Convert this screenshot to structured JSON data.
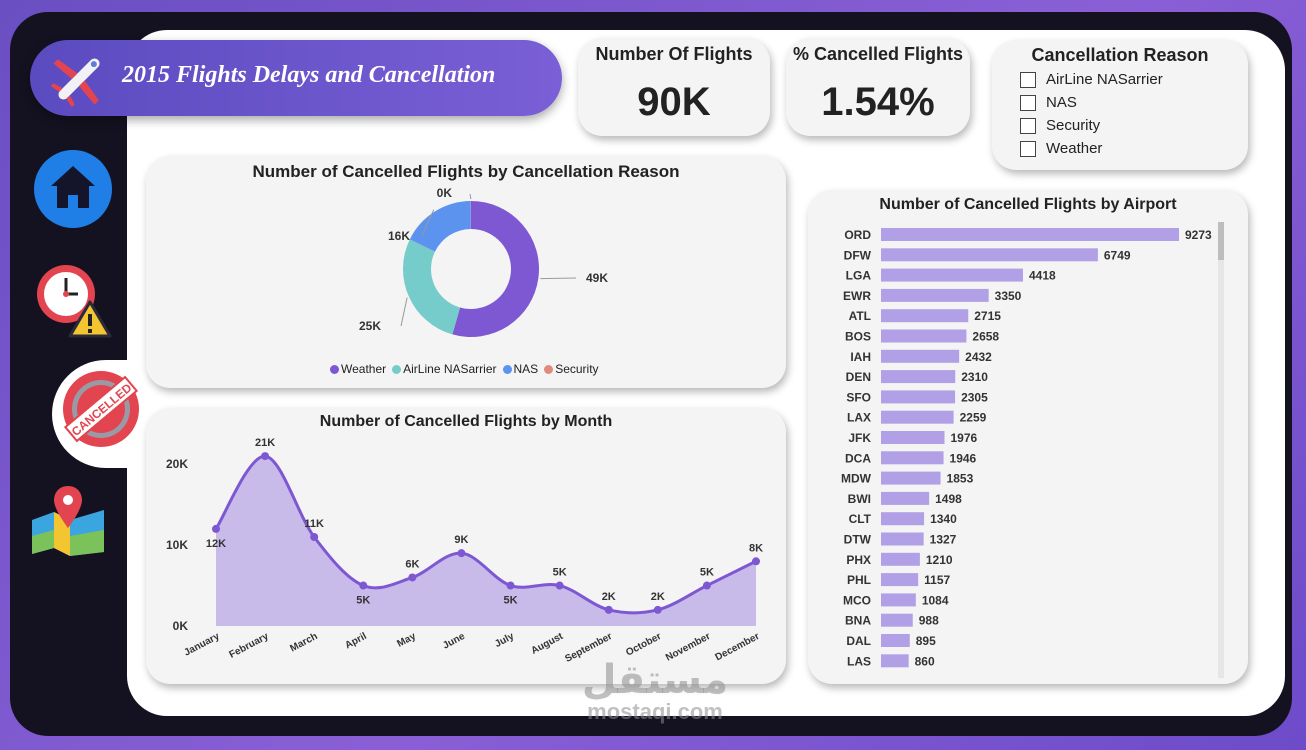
{
  "header": {
    "title": "2015 Flights Delays and Cancellation"
  },
  "nav": {
    "items": [
      {
        "icon": "home-icon"
      },
      {
        "icon": "delay-clock-icon"
      },
      {
        "icon": "cancelled-stamp-icon",
        "active": true
      },
      {
        "icon": "map-pin-icon"
      }
    ]
  },
  "kpis": {
    "flights": {
      "label": "Number Of Flights",
      "value": "90K"
    },
    "cancelled_pct": {
      "label": "% Cancelled Flights",
      "value": "1.54%"
    }
  },
  "slicer": {
    "title": "Cancellation Reason",
    "options": [
      "AirLine NASarrier",
      "NAS",
      "Security",
      "Weather"
    ]
  },
  "colors": {
    "purple": "#7e57d2",
    "teal": "#76ccca",
    "blue": "#5b93ef",
    "security": "#e08a7c",
    "bar": "#b1a0e6",
    "area": "#c8bbea"
  },
  "watermark": {
    "arabic": "مستقل",
    "latin": "mostaqi.com"
  },
  "chart_data": [
    {
      "id": "reason_donut",
      "type": "pie",
      "title": "Number of Cancelled Flights by  Cancellation Reason",
      "slices": [
        {
          "name": "Weather",
          "value": 49,
          "label": "49K",
          "color": "#7e57d2"
        },
        {
          "name": "AirLine NASarrier",
          "value": 25,
          "label": "25K",
          "color": "#76ccca"
        },
        {
          "name": "NAS",
          "value": 16,
          "label": "16K",
          "color": "#5b93ef"
        },
        {
          "name": "Security",
          "value": 0.05,
          "label": "0K",
          "color": "#e08a7c"
        }
      ],
      "legend": [
        "Weather",
        "AirLine NASarrier",
        "NAS",
        "Security"
      ]
    },
    {
      "id": "month_area",
      "type": "area",
      "title": "Number of Cancelled Flights by Month",
      "categories": [
        "January",
        "February",
        "March",
        "April",
        "May",
        "June",
        "July",
        "August",
        "September",
        "October",
        "November",
        "December"
      ],
      "values": [
        12,
        21,
        11,
        5,
        6,
        9,
        5,
        5,
        2,
        2,
        5,
        8
      ],
      "labels": [
        "12K",
        "21K",
        "11K",
        "5K",
        "6K",
        "9K",
        "5K",
        "5K",
        "2K",
        "2K",
        "5K",
        "8K"
      ],
      "yticks": [
        "0K",
        "10K",
        "20K"
      ],
      "ylim": [
        0,
        22
      ]
    },
    {
      "id": "airport_bar",
      "type": "bar",
      "orientation": "horizontal",
      "title": "Number of Cancelled Flights by Airport",
      "categories": [
        "ORD",
        "DFW",
        "LGA",
        "EWR",
        "ATL",
        "BOS",
        "IAH",
        "DEN",
        "SFO",
        "LAX",
        "JFK",
        "DCA",
        "MDW",
        "BWI",
        "CLT",
        "DTW",
        "PHX",
        "PHL",
        "MCO",
        "BNA",
        "DAL",
        "LAS"
      ],
      "values": [
        9273,
        6749,
        4418,
        3350,
        2715,
        2658,
        2432,
        2310,
        2305,
        2259,
        1976,
        1946,
        1853,
        1498,
        1340,
        1327,
        1210,
        1157,
        1084,
        988,
        895,
        860
      ]
    }
  ]
}
